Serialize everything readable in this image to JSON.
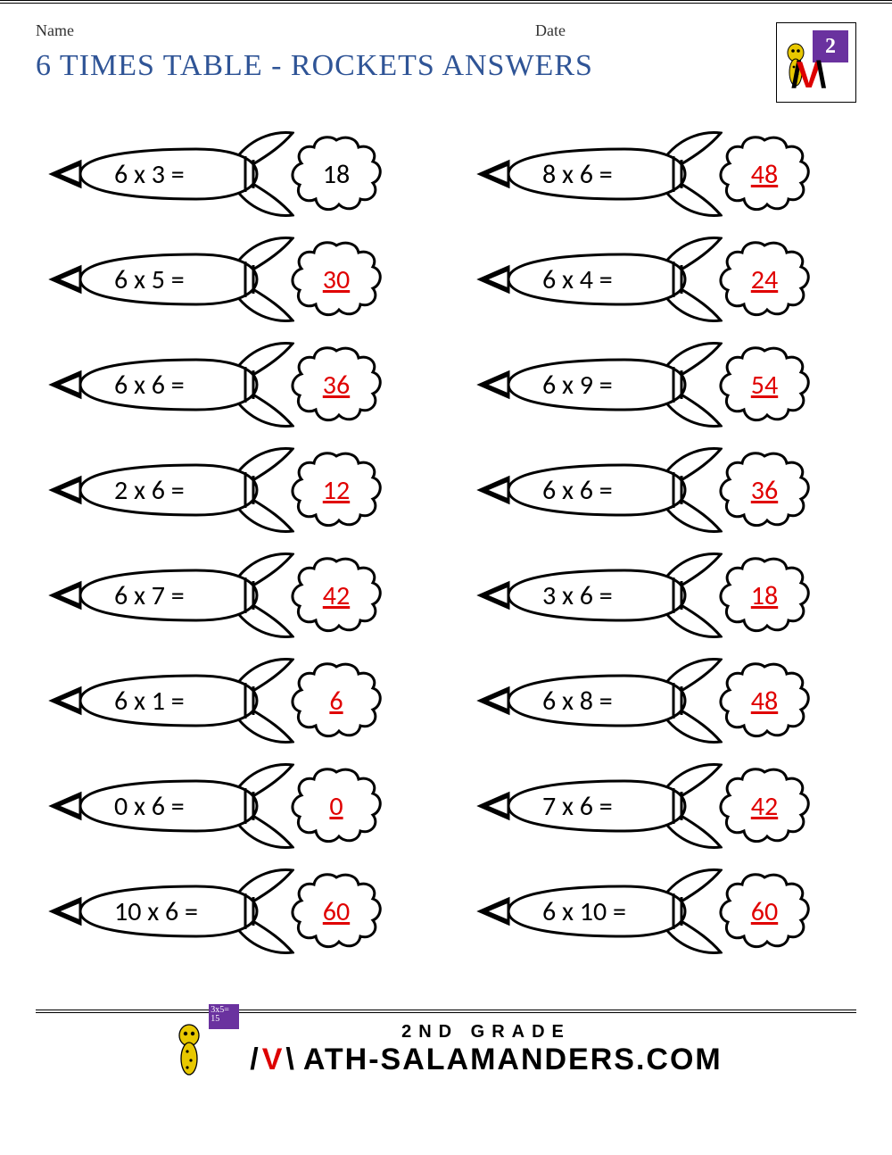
{
  "header": {
    "name_label": "Name",
    "date_label": "Date"
  },
  "title": "6 TIMES TABLE - ROCKETS ANSWERS",
  "logo": {
    "grade_num": "2",
    "board_small": "3x5=\n15"
  },
  "colors": {
    "title_color": "#2f5496",
    "answer_red": "#e00000",
    "answer_black": "#000000",
    "stroke": "#000000",
    "logo_purple": "#6a329f"
  },
  "rows_left": [
    {
      "equation": "6 x 3 =",
      "answer": "18",
      "style": "black"
    },
    {
      "equation": "6 x 5 =",
      "answer": "30",
      "style": "red"
    },
    {
      "equation": "6 x 6 =",
      "answer": "36",
      "style": "red"
    },
    {
      "equation": "2 x 6 =",
      "answer": "12",
      "style": "red"
    },
    {
      "equation": "6 x 7 =",
      "answer": "42",
      "style": "red"
    },
    {
      "equation": "6 x 1 =",
      "answer": "6",
      "style": "red"
    },
    {
      "equation": "0 x 6 =",
      "answer": "0",
      "style": "red"
    },
    {
      "equation": "10 x 6 =",
      "answer": "60",
      "style": "red"
    }
  ],
  "rows_right": [
    {
      "equation": "8 x 6 =",
      "answer": "48",
      "style": "red"
    },
    {
      "equation": "6 x 4 =",
      "answer": "24",
      "style": "red"
    },
    {
      "equation": "6 x 9 =",
      "answer": "54",
      "style": "red"
    },
    {
      "equation": "6 x 6 =",
      "answer": "36",
      "style": "red"
    },
    {
      "equation": "3 x 6 =",
      "answer": "18",
      "style": "red"
    },
    {
      "equation": "6 x 8 =",
      "answer": "48",
      "style": "red"
    },
    {
      "equation": "7 x 6 =",
      "answer": "42",
      "style": "red"
    },
    {
      "equation": "6 x 10 =",
      "answer": "60",
      "style": "red"
    }
  ],
  "footer": {
    "grade": "2ND GRADE",
    "brand_a": "ATH-SALAMANDERS.COM"
  }
}
